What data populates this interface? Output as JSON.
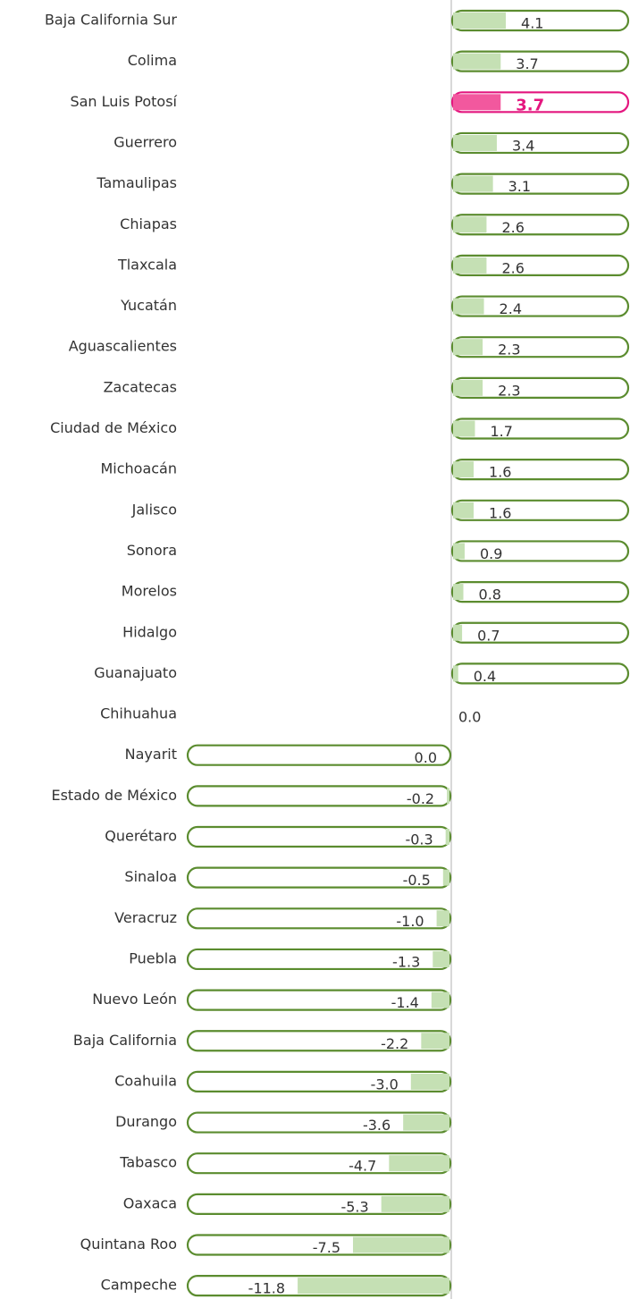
{
  "chart_data": {
    "type": "bar",
    "categories": [
      "Baja California Sur",
      "Colima",
      "San Luis Potosí",
      "Guerrero",
      "Tamaulipas",
      "Chiapas",
      "Tlaxcala",
      "Yucatán",
      "Aguascalientes",
      "Zacatecas",
      "Ciudad de México",
      "Michoacán",
      "Jalisco",
      "Sonora",
      "Morelos",
      "Hidalgo",
      "Guanajuato",
      "Chihuahua",
      "Nayarit",
      "Estado de México",
      "Querétaro",
      "Sinaloa",
      "Veracruz",
      "Puebla",
      "Nuevo León",
      "Baja California",
      "Coahuila",
      "Durango",
      "Tabasco",
      "Oaxaca",
      "Quintana Roo",
      "Campeche"
    ],
    "values": [
      4.1,
      3.7,
      3.7,
      3.4,
      3.1,
      2.6,
      2.6,
      2.4,
      2.3,
      2.3,
      1.7,
      1.6,
      1.6,
      0.9,
      0.8,
      0.7,
      0.4,
      0.0,
      -0.0,
      -0.2,
      -0.3,
      -0.5,
      -1.0,
      -1.3,
      -1.4,
      -2.2,
      -3.0,
      -3.6,
      -4.7,
      -5.3,
      -7.5,
      -11.8
    ],
    "value_labels": [
      "4.1",
      "3.7",
      "3.7",
      "3.4",
      "3.1",
      "2.6",
      "2.6",
      "2.4",
      "2.3",
      "2.3",
      "1.7",
      "1.6",
      "1.6",
      "0.9",
      "0.8",
      "0.7",
      "0.4",
      "0.0",
      "0.0",
      "-0.2",
      "-0.3",
      "-0.5",
      "-1.0",
      "-1.3",
      "-1.4",
      "-2.2",
      "-3.0",
      "-3.6",
      "-4.7",
      "-5.3",
      "-7.5",
      "-11.8"
    ],
    "color": "#c5e0b4",
    "outline_color": "#5b8c2f",
    "highlight": "San Luis Potosí",
    "highlight_color": "#f2589e",
    "highlight_outline_color": "#e4177f"
  }
}
